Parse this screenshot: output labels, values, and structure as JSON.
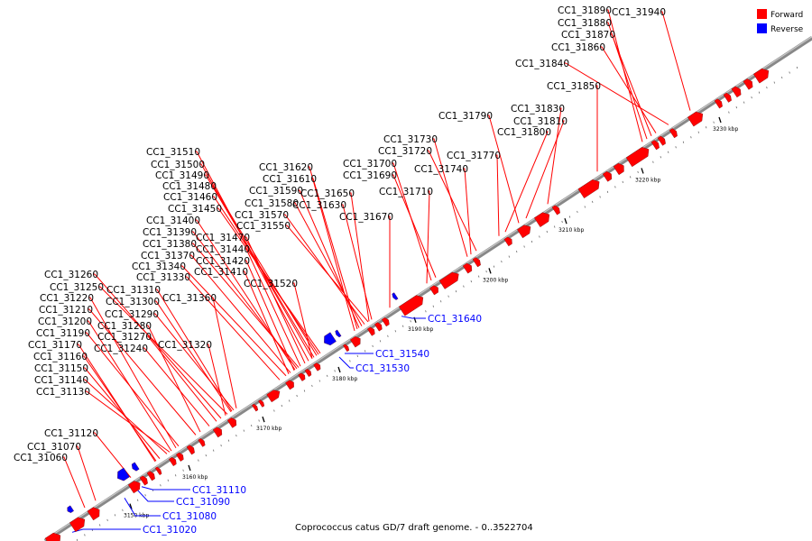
{
  "title": "Coprococcus catus GD/7 draft genome. - 0..3522704",
  "colors": {
    "forward": "#ff0000",
    "reverse": "#0000ff",
    "backbone": "#888888",
    "text": "#000000"
  },
  "legend": [
    {
      "name": "Forward",
      "color": "#ff0000"
    },
    {
      "name": "Reverse",
      "color": "#0000ff"
    }
  ],
  "tick_labels": [
    "3150 kbp",
    "3160 kbp",
    "3170 kbp",
    "3180 kbp",
    "3190 kbp",
    "3200 kbp",
    "3210 kbp",
    "3220 kbp",
    "3230 kbp"
  ],
  "forward_labels": [
    "CC1_31890",
    "CC1_31880",
    "CC1_31940",
    "CC1_31870",
    "CC1_31860",
    "CC1_31840",
    "CC1_31850",
    "CC1_31830",
    "CC1_31790",
    "CC1_31810",
    "CC1_31800",
    "CC1_31730",
    "CC1_31720",
    "CC1_31770",
    "CC1_31700",
    "CC1_31740",
    "CC1_31690",
    "CC1_31710",
    "CC1_31510",
    "CC1_31500",
    "CC1_31490",
    "CC1_31480",
    "CC1_31460",
    "CC1_31450",
    "CC1_31620",
    "CC1_31610",
    "CC1_31590",
    "CC1_31580",
    "CC1_31570",
    "CC1_31550",
    "CC1_31650",
    "CC1_31630",
    "CC1_31670",
    "CC1_31400",
    "CC1_31390",
    "CC1_31470",
    "CC1_31380",
    "CC1_31440",
    "CC1_31370",
    "CC1_31420",
    "CC1_31340",
    "CC1_31410",
    "CC1_31330",
    "CC1_31520",
    "CC1_31260",
    "CC1_31250",
    "CC1_31310",
    "CC1_31220",
    "CC1_31300",
    "CC1_31360",
    "CC1_31210",
    "CC1_31290",
    "CC1_31200",
    "CC1_31280",
    "CC1_31190",
    "CC1_31270",
    "CC1_31170",
    "CC1_31240",
    "CC1_31320",
    "CC1_31160",
    "CC1_31150",
    "CC1_31140",
    "CC1_31130",
    "CC1_31120",
    "CC1_31070",
    "CC1_31060"
  ],
  "reverse_labels": [
    "CC1_31640",
    "CC1_31540",
    "CC1_31530",
    "CC1_31110",
    "CC1_31090",
    "CC1_31080",
    "CC1_31020"
  ]
}
